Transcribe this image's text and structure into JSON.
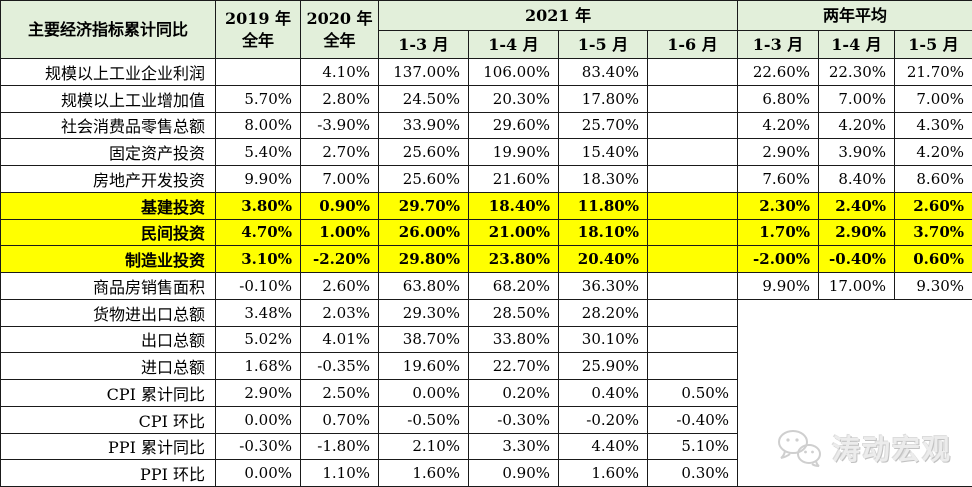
{
  "chart_data": {
    "type": "table",
    "title": "主要经济指标累计同比",
    "header": {
      "corner": "主要经济指标累计同比",
      "col_2019": "2019 年\n全年",
      "col_2020": "2020 年\n全年",
      "group_2021": "2021 年",
      "group_two_year_avg": "两年平均",
      "months_2021": [
        "1-3 月",
        "1-4 月",
        "1-5 月",
        "1-6 月"
      ],
      "months_avg": [
        "1-3 月",
        "1-4 月",
        "1-5 月"
      ]
    },
    "rows": [
      {
        "label": "规模以上工业企业利润",
        "y2019": "",
        "y2020": "4.10%",
        "m2021": [
          "137.00%",
          "106.00%",
          "83.40%",
          ""
        ],
        "avg": [
          "22.60%",
          "22.30%",
          "21.70%"
        ],
        "highlight": false
      },
      {
        "label": "规模以上工业增加值",
        "y2019": "5.70%",
        "y2020": "2.80%",
        "m2021": [
          "24.50%",
          "20.30%",
          "17.80%",
          ""
        ],
        "avg": [
          "6.80%",
          "7.00%",
          "7.00%"
        ],
        "highlight": false
      },
      {
        "label": "社会消费品零售总额",
        "y2019": "8.00%",
        "y2020": "-3.90%",
        "m2021": [
          "33.90%",
          "29.60%",
          "25.70%",
          ""
        ],
        "avg": [
          "4.20%",
          "4.20%",
          "4.30%"
        ],
        "highlight": false
      },
      {
        "label": "固定资产投资",
        "y2019": "5.40%",
        "y2020": "2.70%",
        "m2021": [
          "25.60%",
          "19.90%",
          "15.40%",
          ""
        ],
        "avg": [
          "2.90%",
          "3.90%",
          "4.20%"
        ],
        "highlight": false
      },
      {
        "label": "房地产开发投资",
        "y2019": "9.90%",
        "y2020": "7.00%",
        "m2021": [
          "25.60%",
          "21.60%",
          "18.30%",
          ""
        ],
        "avg": [
          "7.60%",
          "8.40%",
          "8.60%"
        ],
        "highlight": false
      },
      {
        "label": "基建投资",
        "y2019": "3.80%",
        "y2020": "0.90%",
        "m2021": [
          "29.70%",
          "18.40%",
          "11.80%",
          ""
        ],
        "avg": [
          "2.30%",
          "2.40%",
          "2.60%"
        ],
        "highlight": true
      },
      {
        "label": "民间投资",
        "y2019": "4.70%",
        "y2020": "1.00%",
        "m2021": [
          "26.00%",
          "21.00%",
          "18.10%",
          ""
        ],
        "avg": [
          "1.70%",
          "2.90%",
          "3.70%"
        ],
        "highlight": true
      },
      {
        "label": "制造业投资",
        "y2019": "3.10%",
        "y2020": "-2.20%",
        "m2021": [
          "29.80%",
          "23.80%",
          "20.40%",
          ""
        ],
        "avg": [
          "-2.00%",
          "-0.40%",
          "0.60%"
        ],
        "highlight": true
      },
      {
        "label": "商品房销售面积",
        "y2019": "-0.10%",
        "y2020": "2.60%",
        "m2021": [
          "63.80%",
          "68.20%",
          "36.30%",
          ""
        ],
        "avg": [
          "9.90%",
          "17.00%",
          "9.30%"
        ],
        "highlight": false
      },
      {
        "label": "货物进出口总额",
        "y2019": "3.48%",
        "y2020": "2.03%",
        "m2021": [
          "29.30%",
          "28.50%",
          "28.20%",
          ""
        ],
        "avg": null,
        "highlight": false
      },
      {
        "label": "出口总额",
        "y2019": "5.02%",
        "y2020": "4.01%",
        "m2021": [
          "38.70%",
          "33.80%",
          "30.10%",
          ""
        ],
        "avg": null,
        "highlight": false
      },
      {
        "label": "进口总额",
        "y2019": "1.68%",
        "y2020": "-0.35%",
        "m2021": [
          "19.60%",
          "22.70%",
          "25.90%",
          ""
        ],
        "avg": null,
        "highlight": false
      },
      {
        "label": "CPI 累计同比",
        "y2019": "2.90%",
        "y2020": "2.50%",
        "m2021": [
          "0.00%",
          "0.20%",
          "0.40%",
          "0.50%"
        ],
        "avg": null,
        "highlight": false
      },
      {
        "label": "CPI 环比",
        "y2019": "0.00%",
        "y2020": "0.70%",
        "m2021": [
          "-0.50%",
          "-0.30%",
          "-0.20%",
          "-0.40%"
        ],
        "avg": null,
        "highlight": false
      },
      {
        "label": "PPI 累计同比",
        "y2019": "-0.30%",
        "y2020": "-1.80%",
        "m2021": [
          "2.10%",
          "3.30%",
          "4.40%",
          "5.10%"
        ],
        "avg": null,
        "highlight": false
      },
      {
        "label": "PPI 环比",
        "y2019": "0.00%",
        "y2020": "1.10%",
        "m2021": [
          "1.60%",
          "0.90%",
          "1.60%",
          "0.30%"
        ],
        "avg": null,
        "highlight": false
      }
    ]
  },
  "watermark": {
    "text": "涛动宏观",
    "icon": "wechat-icon"
  },
  "colors": {
    "header_bg": "#e2efda",
    "highlight": "#ffff00",
    "border": "#1a1a1a",
    "watermark": "#d9d9d9"
  }
}
